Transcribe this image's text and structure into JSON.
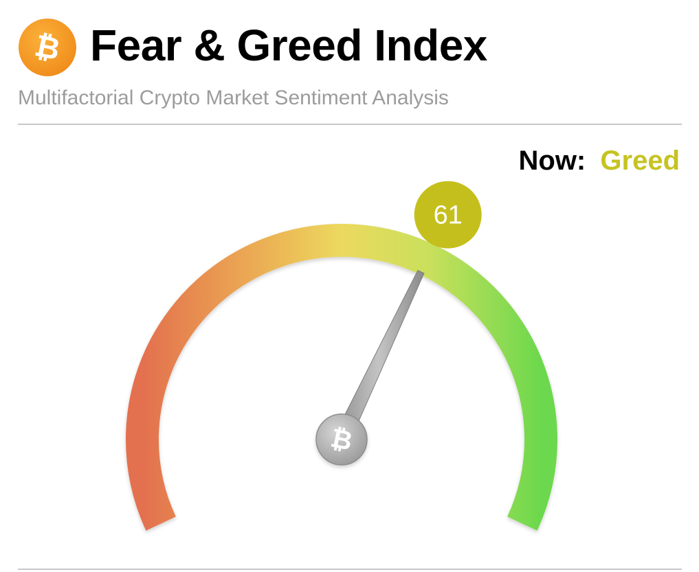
{
  "header": {
    "title": "Fear & Greed Index",
    "subtitle": "Multifactorial Crypto Market Sentiment Analysis",
    "logo_icon": "bitcoin-icon"
  },
  "status": {
    "now_label": "Now:",
    "now_value": "Greed"
  },
  "gauge": {
    "value": 61,
    "min": 0,
    "max": 100,
    "value_label": "61",
    "hub_icon": "bitcoin-icon"
  },
  "colors": {
    "brand_orange": "#f7931a",
    "greed_text": "#c6c322",
    "badge": "#c5bf1d",
    "gauge_fear": "#e36b4e",
    "gauge_mid": "#ece05e",
    "gauge_greed": "#6fd94f",
    "needle": "#a4a4a4"
  }
}
